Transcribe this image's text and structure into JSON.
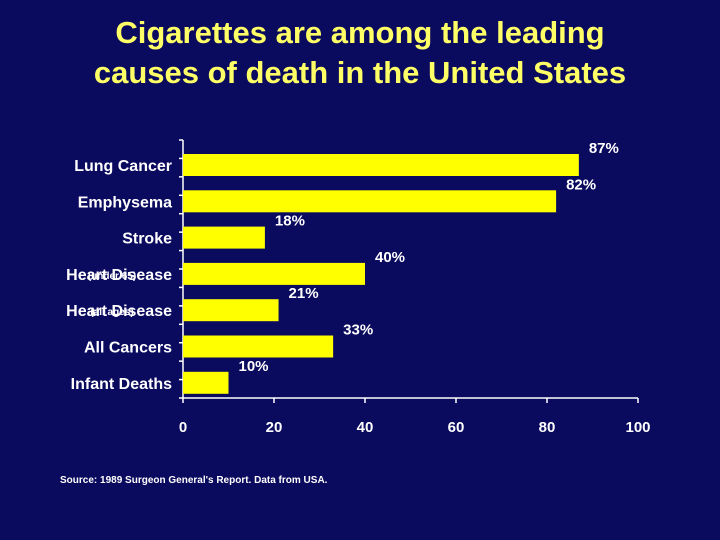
{
  "title_line1": "Cigarettes are among the leading",
  "title_line2": "causes of death in the United States",
  "source": "Source: 1989 Surgeon General's Report. Data from USA.",
  "colors": {
    "background": "#0a0a5e",
    "bar": "#ffff00",
    "text": "#ffffff",
    "title": "#ffff66"
  },
  "chart_data": {
    "type": "bar",
    "orientation": "horizontal",
    "categories": [
      "Lung Cancer",
      "Emphysema",
      "Stroke",
      "Heart Disease",
      "Heart Disease",
      "All Cancers",
      "Infant Deaths"
    ],
    "category_sublabels": [
      "",
      "",
      "",
      "(under 65)",
      "(all ages)",
      "",
      ""
    ],
    "values": [
      87,
      82,
      18,
      40,
      21,
      33,
      10
    ],
    "value_labels": [
      "87%",
      "82%",
      "18%",
      "40%",
      "21%",
      "33%",
      "10%"
    ],
    "xticks": [
      "0",
      "20",
      "40",
      "60",
      "80",
      "100"
    ],
    "xlim": [
      0,
      100
    ],
    "xlabel": "",
    "ylabel": "",
    "grid": false
  }
}
